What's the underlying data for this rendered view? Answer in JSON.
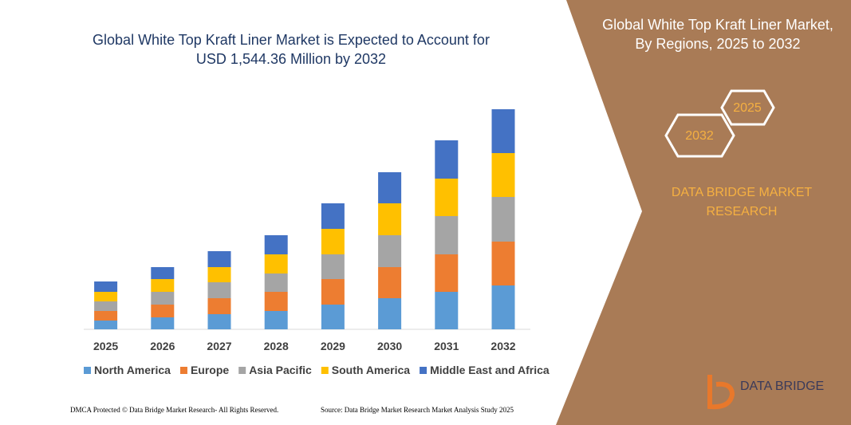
{
  "chart_data": {
    "type": "stacked_bar",
    "title": "Global White Top Kraft Liner Market is Expected to Account for USD 1,544.36 Million by 2032",
    "categories": [
      "2025",
      "2026",
      "2027",
      "2028",
      "2029",
      "2030",
      "2031",
      "2032"
    ],
    "series": [
      {
        "name": "North America",
        "color": "#5b9bd5",
        "values": [
          11,
          15,
          19,
          23,
          31,
          39,
          47,
          55
        ]
      },
      {
        "name": "Europe",
        "color": "#ed7d31",
        "values": [
          12,
          16,
          20,
          24,
          32,
          39,
          47,
          55
        ]
      },
      {
        "name": "Asia Pacific",
        "color": "#a5a5a5",
        "values": [
          12,
          16,
          20,
          23,
          31,
          40,
          48,
          56
        ]
      },
      {
        "name": "South America",
        "color": "#ffc000",
        "values": [
          12,
          16,
          19,
          24,
          32,
          40,
          47,
          55
        ]
      },
      {
        "name": "Middle East and Africa",
        "color": "#4472c4",
        "values": [
          13,
          15,
          20,
          24,
          32,
          39,
          48,
          55
        ]
      }
    ]
  },
  "side_panel": {
    "title": "Global White Top Kraft Liner Market, By Regions, 2025 to 2032",
    "badges": [
      "2025",
      "2032"
    ],
    "brand": "DATA BRIDGE MARKET RESEARCH"
  },
  "logo": {
    "text": "DATA BRIDGE"
  },
  "footer": {
    "copyright": "DMCA Protected © Data Bridge Market Research- All Rights Reserved.",
    "source": "Source: Data Bridge Market Research Market Analysis Study 2025"
  }
}
